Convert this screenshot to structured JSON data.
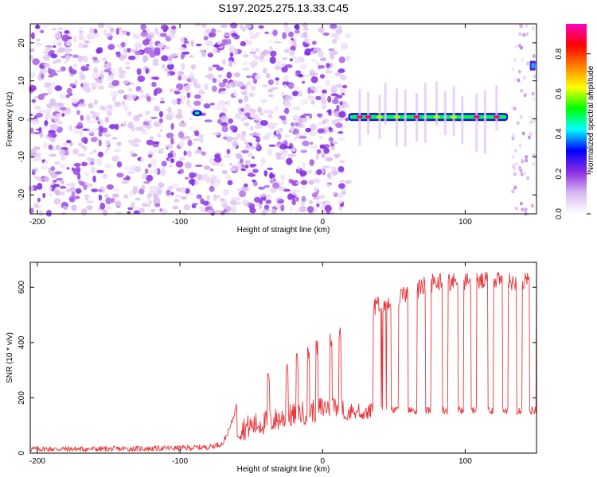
{
  "title": "S197.2025.275.13.33.C45",
  "chart_data": [
    {
      "type": "heatmap",
      "xlabel": "Height of straight line (km)",
      "ylabel": "Frequency (Hz)",
      "xlim": [
        -205,
        150
      ],
      "ylim": [
        -25,
        25
      ],
      "xticks": [
        -200,
        -100,
        0,
        100
      ],
      "yticks": [
        -20,
        -10,
        0,
        10,
        20
      ],
      "colorbar": {
        "label": "Normalized spectral amplitude",
        "ticks": [
          0.0,
          0.2,
          0.4,
          0.6,
          0.8
        ],
        "range": [
          0,
          0.95
        ],
        "colors": [
          "#ffffff",
          "#d8b8f0",
          "#8a2be2",
          "#0000ff",
          "#00ffff",
          "#00ff00",
          "#ffff00",
          "#ff8000",
          "#ff0000",
          "#ff00c0"
        ]
      },
      "features": [
        {
          "name": "noise",
          "x_range": [
            -205,
            18
          ],
          "freq_range": [
            -25,
            25
          ],
          "level": 0.1
        },
        {
          "name": "spot",
          "x": -88,
          "freq": 1.5,
          "level": 0.5
        },
        {
          "name": "band",
          "x_range": [
            18,
            130
          ],
          "freq": 0.5,
          "level": 0.5,
          "peaks_x": [
            26,
            32,
            40,
            52,
            66,
            80,
            92,
            108,
            122
          ],
          "peaks_level": [
            0.92,
            0.9,
            0.6,
            0.6,
            0.92,
            0.6,
            0.6,
            0.92,
            0.92
          ]
        },
        {
          "name": "right_edge_spot",
          "x": 147,
          "freq": 14,
          "level": 0.4
        }
      ]
    },
    {
      "type": "line",
      "xlabel": "Height of straight line (km)",
      "ylabel": "SNR (10 * v/v)",
      "xlim": [
        -205,
        150
      ],
      "ylim": [
        0,
        690
      ],
      "xticks": [
        -200,
        -100,
        0,
        100
      ],
      "yticks": [
        0,
        200,
        400,
        600
      ],
      "series": [
        {
          "name": "SNR",
          "color": "#e8363a",
          "x": [
            -205,
            -150,
            -100,
            -80,
            -70,
            -65,
            -62,
            -60,
            -55,
            -50,
            -40,
            -30,
            -20,
            -10,
            0,
            10,
            20,
            30,
            40,
            50,
            60,
            70,
            80,
            90,
            100,
            110,
            120,
            130,
            140,
            150
          ],
          "y": [
            15,
            15,
            18,
            22,
            35,
            90,
            140,
            180,
            130,
            110,
            100,
            110,
            120,
            130,
            110,
            120,
            130,
            140,
            150,
            560,
            580,
            600,
            590,
            580,
            590,
            600,
            600,
            590,
            560,
            150
          ]
        }
      ]
    }
  ]
}
